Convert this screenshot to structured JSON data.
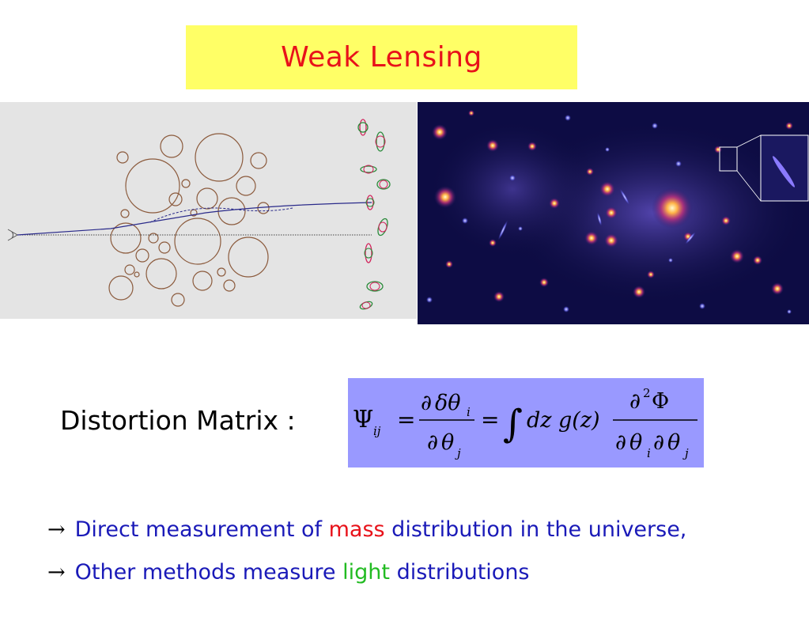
{
  "title": "Weak Lensing",
  "distortion_label": "Distortion Matrix :",
  "formula": {
    "psi": "Ψ",
    "psi_sub": "ij",
    "equals": "=",
    "partial": "∂",
    "delta_theta": "δθ",
    "sub_i": "i",
    "theta": "θ",
    "sub_j": "j",
    "integral": "∫",
    "dz": "dz",
    "g_of_z": "g(z)",
    "d2": "∂",
    "sup_2": "2",
    "phi": "Φ"
  },
  "bullets": [
    {
      "arrow": "→",
      "before": "Direct measurement of ",
      "highlight": "mass",
      "after": " distribution in the universe,"
    },
    {
      "arrow": "→",
      "before": "Other methods measure ",
      "highlight": "light",
      "after": " distributions"
    }
  ],
  "colors": {
    "title_bg": "#ffff66",
    "title_text": "#e8121a",
    "formula_bg": "#9999ff",
    "bullet_text": "#1a1ab8",
    "mass_highlight": "#e8121a",
    "light_highlight": "#22bb22"
  }
}
